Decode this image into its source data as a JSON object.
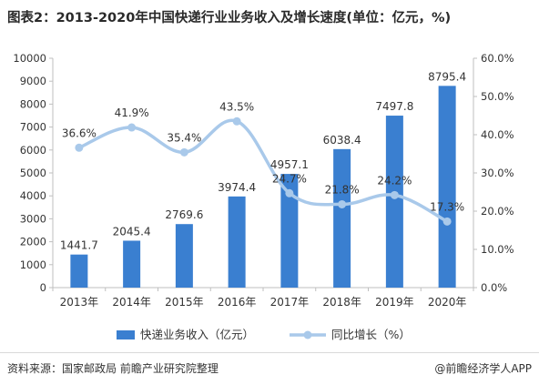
{
  "title": "图表2：2013-2020年中国快递行业业务收入及增长速度(单位：亿元，%)",
  "source": "资料来源：国家邮政局 前瞻产业研究院整理",
  "credit": "@前瞻经济学人APP",
  "colors": {
    "bar": "#3a7fd0",
    "line": "#a9c9ea",
    "axis": "#bfbfbf",
    "text": "#333333"
  },
  "chart_data": {
    "type": "bar+line",
    "categories": [
      "2013年",
      "2014年",
      "2015年",
      "2016年",
      "2017年",
      "2018年",
      "2019年",
      "2020年"
    ],
    "series": [
      {
        "name": "快递业务收入（亿元）",
        "type": "bar",
        "axis": "left",
        "values": [
          1441.7,
          2045.4,
          2769.6,
          3974.4,
          4957.1,
          6038.4,
          7497.8,
          8795.4
        ],
        "labels": [
          "1441.7",
          "2045.4",
          "2769.6",
          "3974.4",
          "4957.1",
          "6038.4",
          "7497.8",
          "8795.4"
        ]
      },
      {
        "name": "同比增长（%）",
        "type": "line",
        "axis": "right",
        "values": [
          36.6,
          41.9,
          35.4,
          43.5,
          24.7,
          21.8,
          24.2,
          17.3
        ],
        "labels": [
          "36.6%",
          "41.9%",
          "35.4%",
          "43.5%",
          "24.7%",
          "21.8%",
          "24.2%",
          "17.3%"
        ]
      }
    ],
    "y_left": {
      "min": 0,
      "max": 10000,
      "ticks": [
        "0",
        "1000",
        "2000",
        "3000",
        "4000",
        "5000",
        "6000",
        "7000",
        "8000",
        "9000",
        "10000"
      ]
    },
    "y_right": {
      "min": 0,
      "max": 60,
      "ticks": [
        "0.0%",
        "10.0%",
        "20.0%",
        "30.0%",
        "40.0%",
        "50.0%",
        "60.0%"
      ]
    },
    "legend": "bottom-center",
    "grid": false
  }
}
